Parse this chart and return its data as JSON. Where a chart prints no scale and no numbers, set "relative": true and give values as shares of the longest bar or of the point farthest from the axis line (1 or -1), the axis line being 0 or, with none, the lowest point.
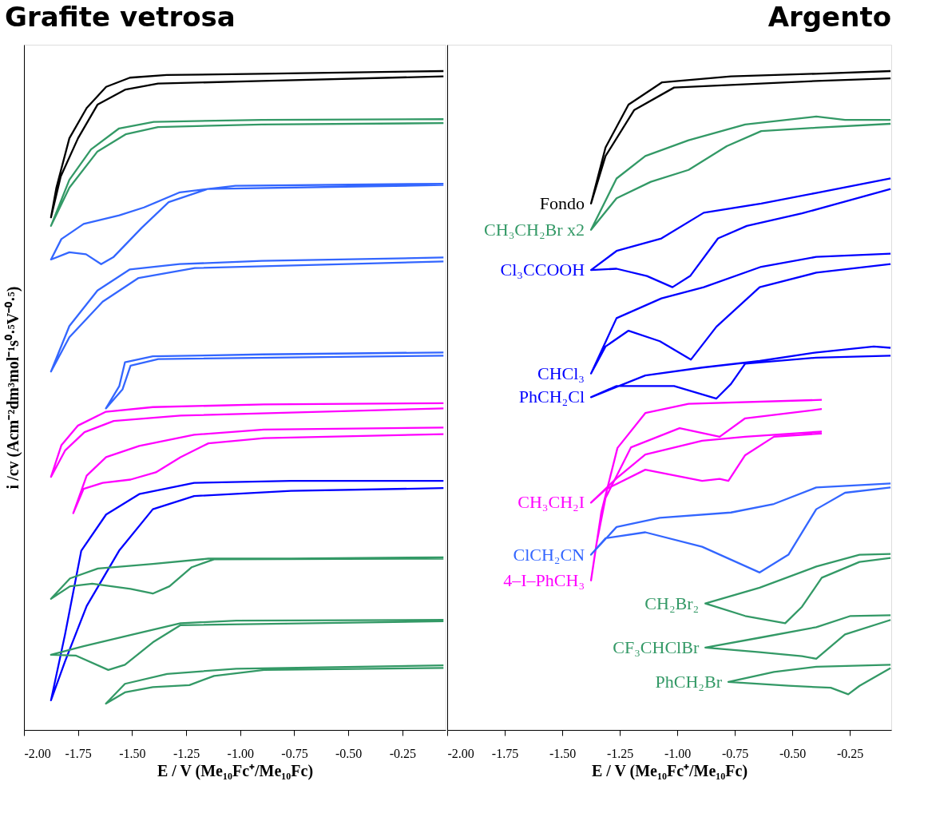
{
  "chart_data": [
    {
      "type": "line",
      "title": "Grafite vetrosa",
      "xlabel": "E / V (Me₁₀Fc⁺/Me₁₀Fc)",
      "ylabel": "i /cv  (Acm⁻²dm³mol⁻¹s⁰·⁵V⁻⁰·⁵)",
      "relative": true,
      "grid": false,
      "xlim": [
        -2.0,
        -0.05
      ],
      "xticks": [
        {
          "value": -2.0,
          "label": "-2.00"
        },
        {
          "value": -1.75,
          "label": "-1.75"
        },
        {
          "value": -1.5,
          "label": "-1.50"
        },
        {
          "value": -1.25,
          "label": "-1.25"
        },
        {
          "value": -1.0,
          "label": "-1.00"
        },
        {
          "value": -0.75,
          "label": "-0.75"
        },
        {
          "value": -0.5,
          "label": "-0.50"
        },
        {
          "value": -0.25,
          "label": "-0.25"
        }
      ],
      "series": [
        {
          "color": "#000000",
          "x": [
            -0.06,
            -0.9,
            -1.34,
            -1.51,
            -1.62,
            -1.71,
            -1.79,
            -1.85,
            -1.875,
            -1.83,
            -1.75,
            -1.66,
            -1.53,
            -1.38,
            -0.9,
            -0.06
          ],
          "values": [
            1.0,
            0.996,
            0.994,
            0.99,
            0.976,
            0.944,
            0.898,
            0.823,
            0.778,
            0.84,
            0.898,
            0.949,
            0.972,
            0.981,
            0.985,
            0.992
          ]
        },
        {
          "color": "#339966",
          "x": [
            -0.06,
            -0.9,
            -1.4,
            -1.56,
            -1.69,
            -1.79,
            -1.875,
            -1.79,
            -1.66,
            -1.53,
            -1.38,
            -0.9,
            -0.06
          ],
          "values": [
            0.927,
            0.926,
            0.923,
            0.913,
            0.881,
            0.835,
            0.765,
            0.823,
            0.878,
            0.904,
            0.915,
            0.919,
            0.921
          ]
        },
        {
          "color": "#3366ff",
          "x": [
            -0.06,
            -1.022,
            -1.279,
            -1.445,
            -1.559,
            -1.724,
            -1.827,
            -1.875,
            -1.79,
            -1.713,
            -1.643,
            -1.585,
            -1.456,
            -1.331,
            -1.151,
            -0.06
          ],
          "values": [
            0.829,
            0.826,
            0.816,
            0.793,
            0.781,
            0.768,
            0.745,
            0.714,
            0.725,
            0.722,
            0.707,
            0.718,
            0.762,
            0.801,
            0.821,
            0.827
          ]
        },
        {
          "color": "#3366ff",
          "x": [
            -0.06,
            -0.9,
            -1.28,
            -1.51,
            -1.66,
            -1.79,
            -1.875,
            -1.79,
            -1.636,
            -1.47,
            -1.21,
            -0.06
          ],
          "values": [
            0.717,
            0.712,
            0.707,
            0.699,
            0.667,
            0.613,
            0.544,
            0.596,
            0.65,
            0.686,
            0.701,
            0.711
          ]
        },
        {
          "color": "#3366ff",
          "x": [
            -0.06,
            -0.897,
            -1.404,
            -1.533,
            -1.559,
            -1.621,
            -1.544,
            -1.507,
            -1.379,
            -0.06
          ],
          "values": [
            0.573,
            0.57,
            0.567,
            0.558,
            0.522,
            0.488,
            0.517,
            0.553,
            0.563,
            0.568
          ]
        },
        {
          "color": "#ff00ff",
          "x": [
            -0.06,
            -0.89,
            -1.404,
            -1.621,
            -1.75,
            -1.827,
            -1.875,
            -1.81,
            -1.72,
            -1.585,
            -1.276,
            -0.06
          ],
          "values": [
            0.496,
            0.494,
            0.49,
            0.483,
            0.462,
            0.432,
            0.384,
            0.424,
            0.452,
            0.469,
            0.477,
            0.488
          ]
        },
        {
          "color": "#ff00ff",
          "x": [
            -0.06,
            -0.89,
            -1.213,
            -1.467,
            -1.62,
            -1.71,
            -1.772,
            -1.724,
            -1.636,
            -1.507,
            -1.39,
            -1.276,
            -1.147,
            -0.89,
            -0.06
          ],
          "values": [
            0.459,
            0.456,
            0.448,
            0.431,
            0.414,
            0.386,
            0.329,
            0.366,
            0.375,
            0.38,
            0.391,
            0.414,
            0.435,
            0.443,
            0.449
          ]
        },
        {
          "color": "#0000ff",
          "x": [
            -0.06,
            -0.765,
            -1.213,
            -1.467,
            -1.62,
            -1.735,
            -1.81,
            -1.875,
            -1.81,
            -1.71,
            -1.56,
            -1.404,
            -1.213,
            -0.765,
            -0.06
          ],
          "values": [
            0.378,
            0.378,
            0.375,
            0.358,
            0.327,
            0.272,
            0.145,
            0.045,
            0.104,
            0.188,
            0.272,
            0.335,
            0.355,
            0.363,
            0.367
          ]
        },
        {
          "color": "#339966",
          "x": [
            -0.06,
            -0.765,
            -1.147,
            -1.404,
            -1.658,
            -1.787,
            -1.875,
            -1.787,
            -1.684,
            -1.507,
            -1.404,
            -1.327,
            -1.224,
            -1.121,
            -0.06
          ],
          "values": [
            0.262,
            0.26,
            0.26,
            0.252,
            0.245,
            0.23,
            0.199,
            0.218,
            0.222,
            0.214,
            0.207,
            0.218,
            0.247,
            0.259,
            0.26
          ]
        },
        {
          "color": "#339966",
          "x": [
            -0.06,
            -1.018,
            -1.276,
            -1.507,
            -1.724,
            -1.875,
            -1.761,
            -1.61,
            -1.533,
            -1.404,
            -1.276,
            -0.06
          ],
          "values": [
            0.167,
            0.166,
            0.162,
            0.144,
            0.127,
            0.114,
            0.113,
            0.091,
            0.099,
            0.133,
            0.159,
            0.165
          ]
        },
        {
          "color": "#339966",
          "x": [
            -0.06,
            -1.018,
            -1.338,
            -1.533,
            -1.621,
            -1.533,
            -1.404,
            -1.235,
            -1.121,
            -0.89,
            -0.06
          ],
          "values": [
            0.098,
            0.093,
            0.085,
            0.07,
            0.04,
            0.057,
            0.065,
            0.068,
            0.082,
            0.091,
            0.094
          ]
        }
      ]
    },
    {
      "type": "line",
      "title": "Argento",
      "xlabel": "E / V (Me₁₀Fc⁺/Me₁₀Fc)",
      "relative": true,
      "grid": false,
      "xlim": [
        -2.0,
        -0.07
      ],
      "xticks": [
        {
          "value": -2.0,
          "label": "-2.00"
        },
        {
          "value": -1.75,
          "label": "-1.75"
        },
        {
          "value": -1.5,
          "label": "-1.50"
        },
        {
          "value": -1.25,
          "label": "-1.25"
        },
        {
          "value": -1.0,
          "label": "-1.00"
        },
        {
          "value": -0.75,
          "label": "-0.75"
        },
        {
          "value": -0.5,
          "label": "-0.50"
        },
        {
          "value": -0.25,
          "label": "-0.25"
        }
      ],
      "series": [
        {
          "name": "Fondo",
          "color": "#000000",
          "x": [
            -0.073,
            -0.396,
            -0.767,
            -1.066,
            -1.212,
            -1.312,
            -1.375,
            -1.312,
            -1.187,
            -1.014,
            -0.396,
            -0.073
          ],
          "values": [
            1.0,
            0.996,
            0.992,
            0.983,
            0.949,
            0.884,
            0.799,
            0.871,
            0.941,
            0.975,
            0.985,
            0.989
          ]
        },
        {
          "name": "CH₃CH₂Br x2",
          "color": "#339966",
          "x": [
            -0.073,
            -0.271,
            -0.396,
            -0.705,
            -0.951,
            -1.139,
            -1.264,
            -1.375,
            -1.264,
            -1.115,
            -0.951,
            -0.785,
            -0.635,
            -0.396,
            -0.073
          ],
          "values": [
            0.926,
            0.926,
            0.931,
            0.919,
            0.895,
            0.871,
            0.837,
            0.759,
            0.807,
            0.832,
            0.85,
            0.886,
            0.909,
            0.914,
            0.92
          ]
        },
        {
          "name": "Cl₃CCOOH",
          "color": "#0000ff",
          "x": [
            -0.073,
            -0.396,
            -0.635,
            -0.885,
            -1.069,
            -1.264,
            -1.375,
            -1.264,
            -1.132,
            -1.021,
            -0.944,
            -0.823,
            -0.698,
            -0.458,
            -0.271,
            -0.073
          ],
          "values": [
            0.837,
            0.815,
            0.799,
            0.785,
            0.746,
            0.727,
            0.698,
            0.7,
            0.689,
            0.672,
            0.689,
            0.746,
            0.765,
            0.784,
            0.802,
            0.821
          ]
        },
        {
          "name": "CHCl₃",
          "color": "#0000ff",
          "x": [
            -0.073,
            -0.396,
            -0.635,
            -0.885,
            -1.069,
            -1.264,
            -1.375,
            -1.312,
            -1.212,
            -1.076,
            -0.941,
            -0.83,
            -0.642,
            -0.396,
            -0.073
          ],
          "values": [
            0.723,
            0.718,
            0.703,
            0.672,
            0.655,
            0.625,
            0.541,
            0.582,
            0.606,
            0.59,
            0.562,
            0.612,
            0.672,
            0.694,
            0.707
          ]
        },
        {
          "name": "PhCH₂Cl",
          "color": "#0000ff",
          "x": [
            -0.073,
            -0.146,
            -0.396,
            -0.642,
            -0.892,
            -1.139,
            -1.375,
            -1.264,
            -1.014,
            -0.83,
            -0.767,
            -0.705,
            -0.396,
            -0.073
          ],
          "values": [
            0.58,
            0.582,
            0.573,
            0.56,
            0.55,
            0.538,
            0.505,
            0.522,
            0.522,
            0.503,
            0.525,
            0.556,
            0.565,
            0.568
          ]
        },
        {
          "name": "4–I–PhCH₃",
          "color": "#ff00ff",
          "x": [
            -0.372,
            -0.951,
            -1.139,
            -1.26,
            -1.33,
            -1.375,
            -1.351,
            -1.312,
            -1.201,
            -0.99,
            -0.816,
            -0.705,
            -0.372
          ],
          "values": [
            0.501,
            0.495,
            0.481,
            0.428,
            0.331,
            0.227,
            0.283,
            0.352,
            0.429,
            0.458,
            0.445,
            0.473,
            0.487
          ]
        },
        {
          "name": "CH₃CH₂I",
          "color": "#ff00ff",
          "x": [
            -0.372,
            -0.705,
            -0.892,
            -1.139,
            -1.264,
            -1.375,
            -1.312,
            -1.139,
            -0.892,
            -0.816,
            -0.778,
            -0.705,
            -0.58,
            -0.372
          ],
          "values": [
            0.453,
            0.445,
            0.439,
            0.418,
            0.382,
            0.345,
            0.365,
            0.395,
            0.378,
            0.381,
            0.378,
            0.417,
            0.445,
            0.45
          ]
        },
        {
          "name": "ClCH₂CN",
          "color": "#3366ff",
          "x": [
            -0.073,
            -0.396,
            -0.58,
            -0.767,
            -1.076,
            -1.264,
            -1.375,
            -1.312,
            -1.139,
            -0.892,
            -0.642,
            -0.517,
            -0.396,
            -0.271,
            -0.073
          ],
          "values": [
            0.374,
            0.368,
            0.343,
            0.33,
            0.322,
            0.308,
            0.266,
            0.291,
            0.3,
            0.278,
            0.239,
            0.266,
            0.335,
            0.36,
            0.368
          ]
        },
        {
          "name": "CH₂Br₂",
          "color": "#339966",
          "x": [
            -0.073,
            -0.208,
            -0.396,
            -0.642,
            -0.878,
            -0.705,
            -0.531,
            -0.458,
            -0.372,
            -0.208,
            -0.073
          ],
          "values": [
            0.267,
            0.266,
            0.248,
            0.216,
            0.192,
            0.173,
            0.162,
            0.187,
            0.231,
            0.255,
            0.261
          ]
        },
        {
          "name": "CF₃CHClBr",
          "color": "#339966",
          "x": [
            -0.073,
            -0.247,
            -0.396,
            -0.642,
            -0.878,
            -0.642,
            -0.458,
            -0.396,
            -0.271,
            -0.073
          ],
          "values": [
            0.174,
            0.173,
            0.156,
            0.14,
            0.125,
            0.118,
            0.112,
            0.108,
            0.145,
            0.167
          ]
        },
        {
          "name": "PhCH₂Br",
          "color": "#339966",
          "x": [
            -0.073,
            -0.396,
            -0.58,
            -0.778,
            -0.517,
            -0.333,
            -0.257,
            -0.208,
            -0.073
          ],
          "values": [
            0.099,
            0.096,
            0.088,
            0.073,
            0.067,
            0.064,
            0.054,
            0.067,
            0.094
          ]
        }
      ]
    }
  ]
}
